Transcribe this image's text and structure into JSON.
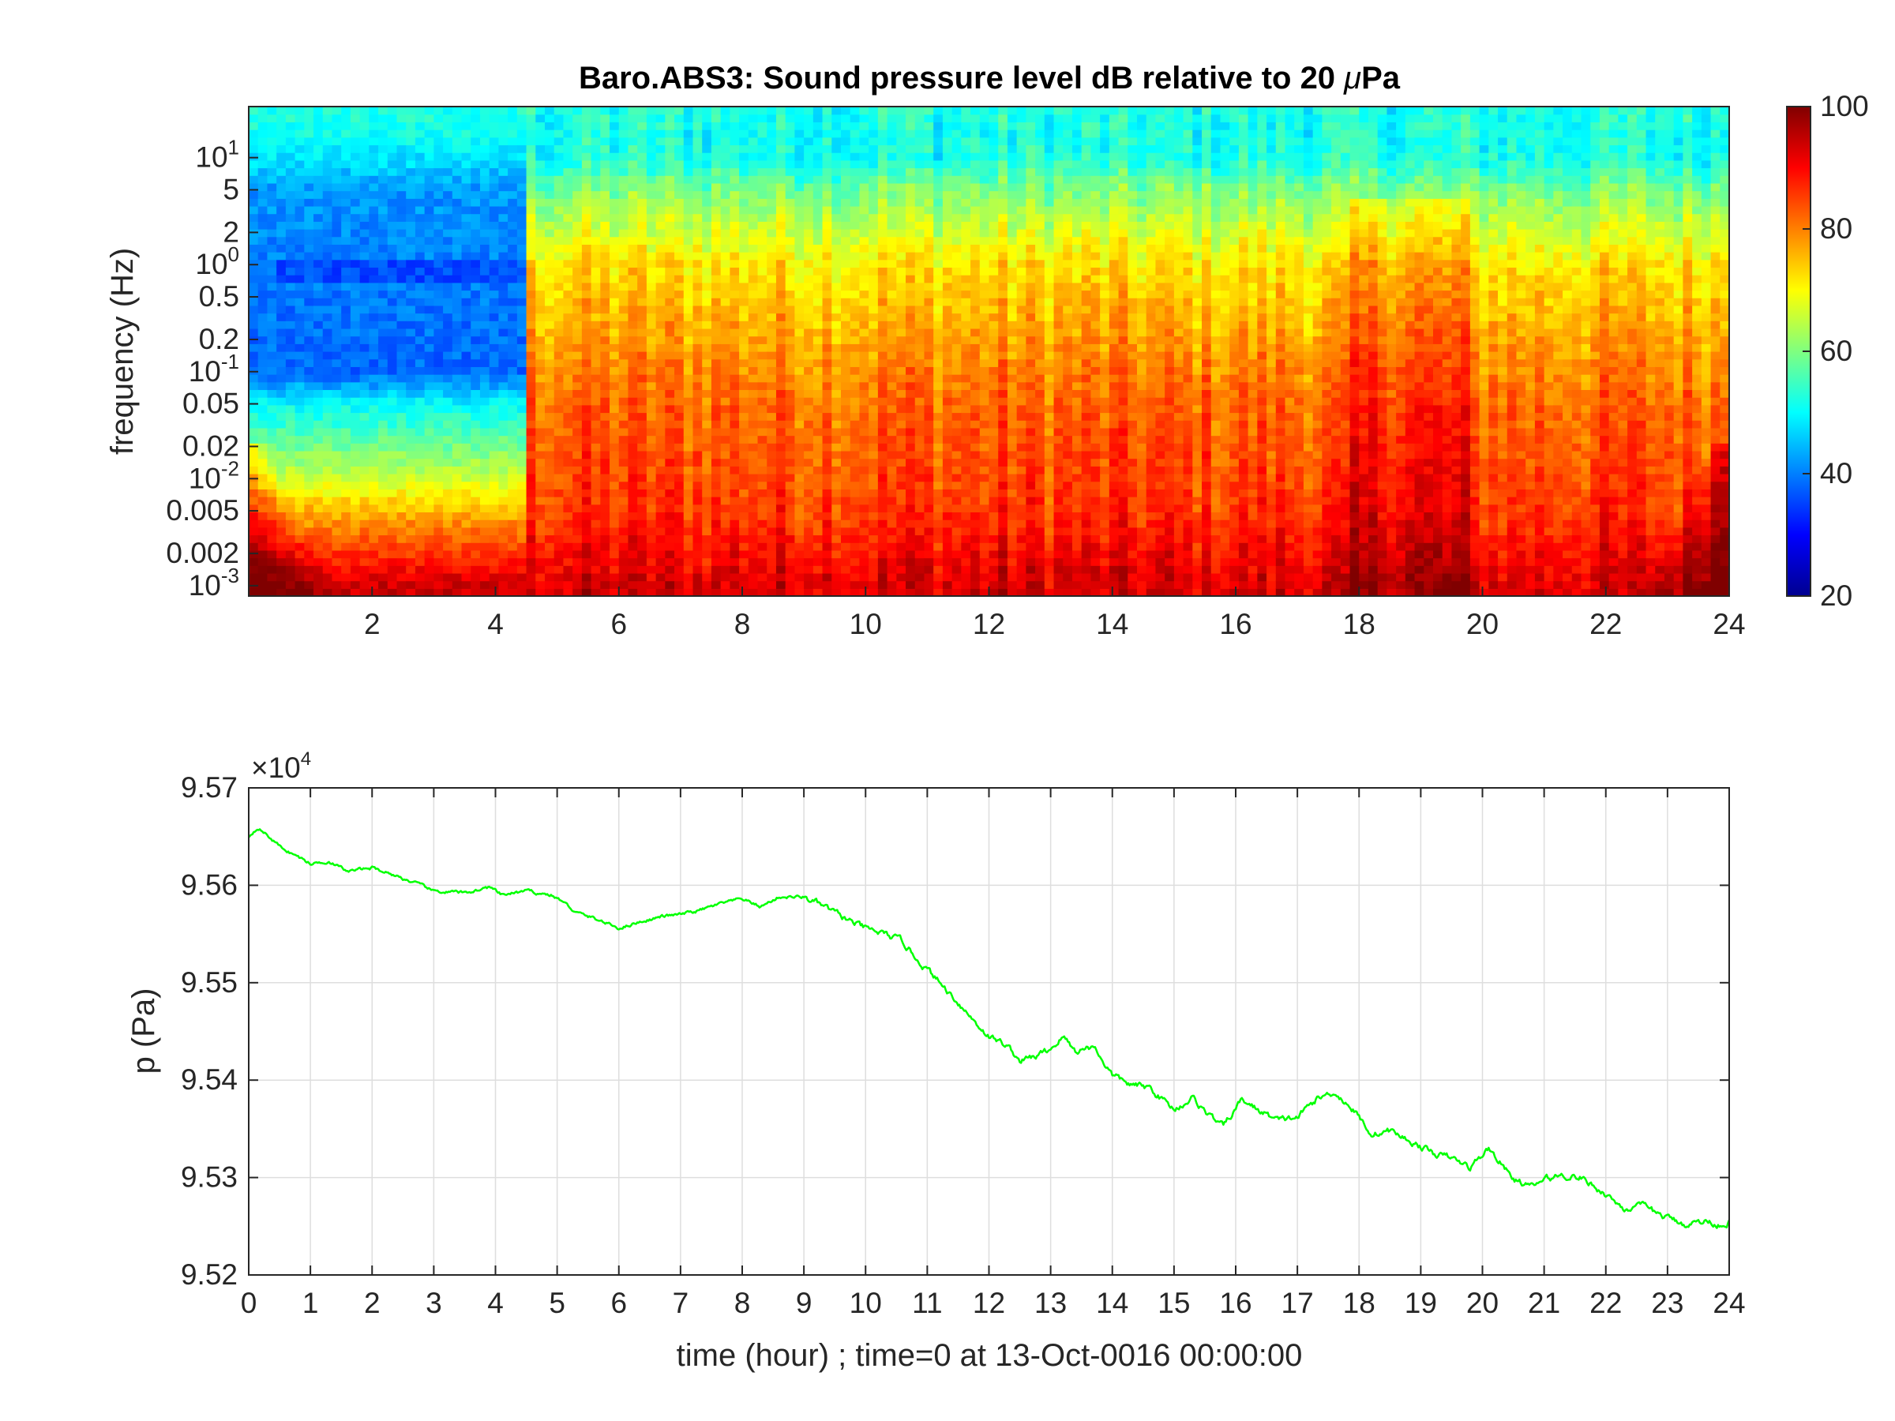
{
  "chart_data": [
    {
      "type": "heatmap",
      "title": "Baro.ABS3: Sound pressure level dB relative to 20 μPa",
      "title_parts": [
        "Baro.ABS3: Sound pressure level dB relative to 20 ",
        "μ",
        "Pa"
      ],
      "ylabel": "frequency (Hz)",
      "xlabel": "",
      "x_scale": "linear",
      "y_scale": "log",
      "xlim": [
        0,
        24
      ],
      "ylim": [
        0.0008,
        30
      ],
      "x_ticks": [
        2,
        4,
        6,
        8,
        10,
        12,
        14,
        16,
        18,
        20,
        22,
        24
      ],
      "x_tick_labels": [
        "2",
        "4",
        "6",
        "8",
        "10",
        "12",
        "14",
        "16",
        "18",
        "20",
        "22",
        "24"
      ],
      "y_ticks": [
        {
          "value": 10,
          "base": "10",
          "exp": "1"
        },
        {
          "value": 5,
          "label": "5"
        },
        {
          "value": 2,
          "label": "2"
        },
        {
          "value": 1,
          "base": "10",
          "exp": "0"
        },
        {
          "value": 0.5,
          "label": "0.5"
        },
        {
          "value": 0.2,
          "label": "0.2"
        },
        {
          "value": 0.1,
          "base": "10",
          "exp": "-1"
        },
        {
          "value": 0.05,
          "label": "0.05"
        },
        {
          "value": 0.02,
          "label": "0.02"
        },
        {
          "value": 0.01,
          "base": "10",
          "exp": "-2"
        },
        {
          "value": 0.005,
          "label": "0.005"
        },
        {
          "value": 0.002,
          "label": "0.002"
        },
        {
          "value": 0.001,
          "base": "10",
          "exp": "-3"
        }
      ],
      "colorbar": {
        "colormap": "jet",
        "range": [
          20,
          100
        ],
        "ticks": [
          100,
          80,
          60,
          40,
          20
        ],
        "tick_labels": [
          "100",
          "80",
          "60",
          "40",
          "20"
        ]
      },
      "level_profile_db": {
        "frequency_hz": [
          0.001,
          0.002,
          0.005,
          0.01,
          0.05,
          0.1,
          1,
          5,
          10,
          20
        ],
        "hours_0_to_4_5": [
          94,
          86,
          76,
          66,
          50,
          38,
          40,
          42,
          48,
          52
        ],
        "hours_4_5_to_24": [
          93,
          90,
          86,
          85,
          82,
          80,
          72,
          60,
          52,
          52
        ]
      }
    },
    {
      "type": "line",
      "title": "",
      "xlabel": "time (hour) ; time=0 at 13-Oct-0016 00:00:00",
      "ylabel": "p (Pa)",
      "xlim": [
        0,
        24
      ],
      "ylim": [
        95200,
        95700
      ],
      "y_exponent_label": {
        "prefix": "×10",
        "exp": "4"
      },
      "x_ticks": [
        0,
        1,
        2,
        3,
        4,
        5,
        6,
        7,
        8,
        9,
        10,
        11,
        12,
        13,
        14,
        15,
        16,
        17,
        18,
        19,
        20,
        21,
        22,
        23,
        24
      ],
      "x_tick_labels": [
        "0",
        "1",
        "2",
        "3",
        "4",
        "5",
        "6",
        "7",
        "8",
        "9",
        "10",
        "11",
        "12",
        "13",
        "14",
        "15",
        "16",
        "17",
        "18",
        "19",
        "20",
        "21",
        "22",
        "23",
        "24"
      ],
      "y_ticks": [
        95700,
        95600,
        95500,
        95400,
        95300,
        95200
      ],
      "y_tick_labels": [
        "9.57",
        "9.56",
        "9.55",
        "9.54",
        "9.53",
        "9.52"
      ],
      "grid": true,
      "line_color": "#00ff00",
      "series": [
        {
          "x": [
            0,
            0.15,
            0.5,
            1.0,
            1.3,
            1.6,
            2.0,
            2.3,
            2.7,
            3.0,
            3.5,
            3.9,
            4.1,
            4.5,
            4.9,
            5.1,
            5.3,
            5.6,
            6.0,
            6.3,
            6.7,
            7.0,
            7.3,
            7.6,
            8.0,
            8.3,
            8.6,
            9.0,
            9.2,
            9.6,
            10.0,
            10.3,
            10.6,
            10.9,
            11.2,
            11.5,
            11.8,
            12.0,
            12.3,
            12.5,
            12.8,
            13.0,
            13.2,
            13.4,
            13.7,
            14.0,
            14.3,
            14.6,
            15.0,
            15.3,
            15.6,
            15.8,
            16.1,
            16.4,
            16.7,
            17.0,
            17.3,
            17.6,
            17.9,
            18.2,
            18.5,
            18.9,
            19.2,
            19.5,
            19.8,
            20.1,
            20.3,
            20.5,
            20.8,
            21.0,
            21.3,
            21.6,
            22.0,
            22.3,
            22.6,
            23.0,
            23.3,
            23.6,
            23.9,
            24.0
          ],
          "y": [
            95650,
            95660,
            95640,
            95622,
            95625,
            95614,
            95618,
            95612,
            95602,
            95594,
            95592,
            95598,
            95590,
            95594,
            95590,
            95583,
            95572,
            95566,
            95556,
            95562,
            95568,
            95570,
            95574,
            95580,
            95586,
            95578,
            95588,
            95588,
            95582,
            95568,
            95555,
            95550,
            95542,
            95520,
            95500,
            95480,
            95458,
            95445,
            95435,
            95420,
            95425,
            95432,
            95445,
            95430,
            95435,
            95405,
            95395,
            95392,
            95370,
            95382,
            95362,
            95352,
            95380,
            95368,
            95358,
            95362,
            95380,
            95388,
            95370,
            95345,
            95348,
            95335,
            95325,
            95320,
            95310,
            95330,
            95315,
            95298,
            95290,
            95298,
            95303,
            95300,
            95283,
            95268,
            95270,
            95258,
            95252,
            95255,
            95252,
            95255
          ]
        }
      ]
    }
  ]
}
